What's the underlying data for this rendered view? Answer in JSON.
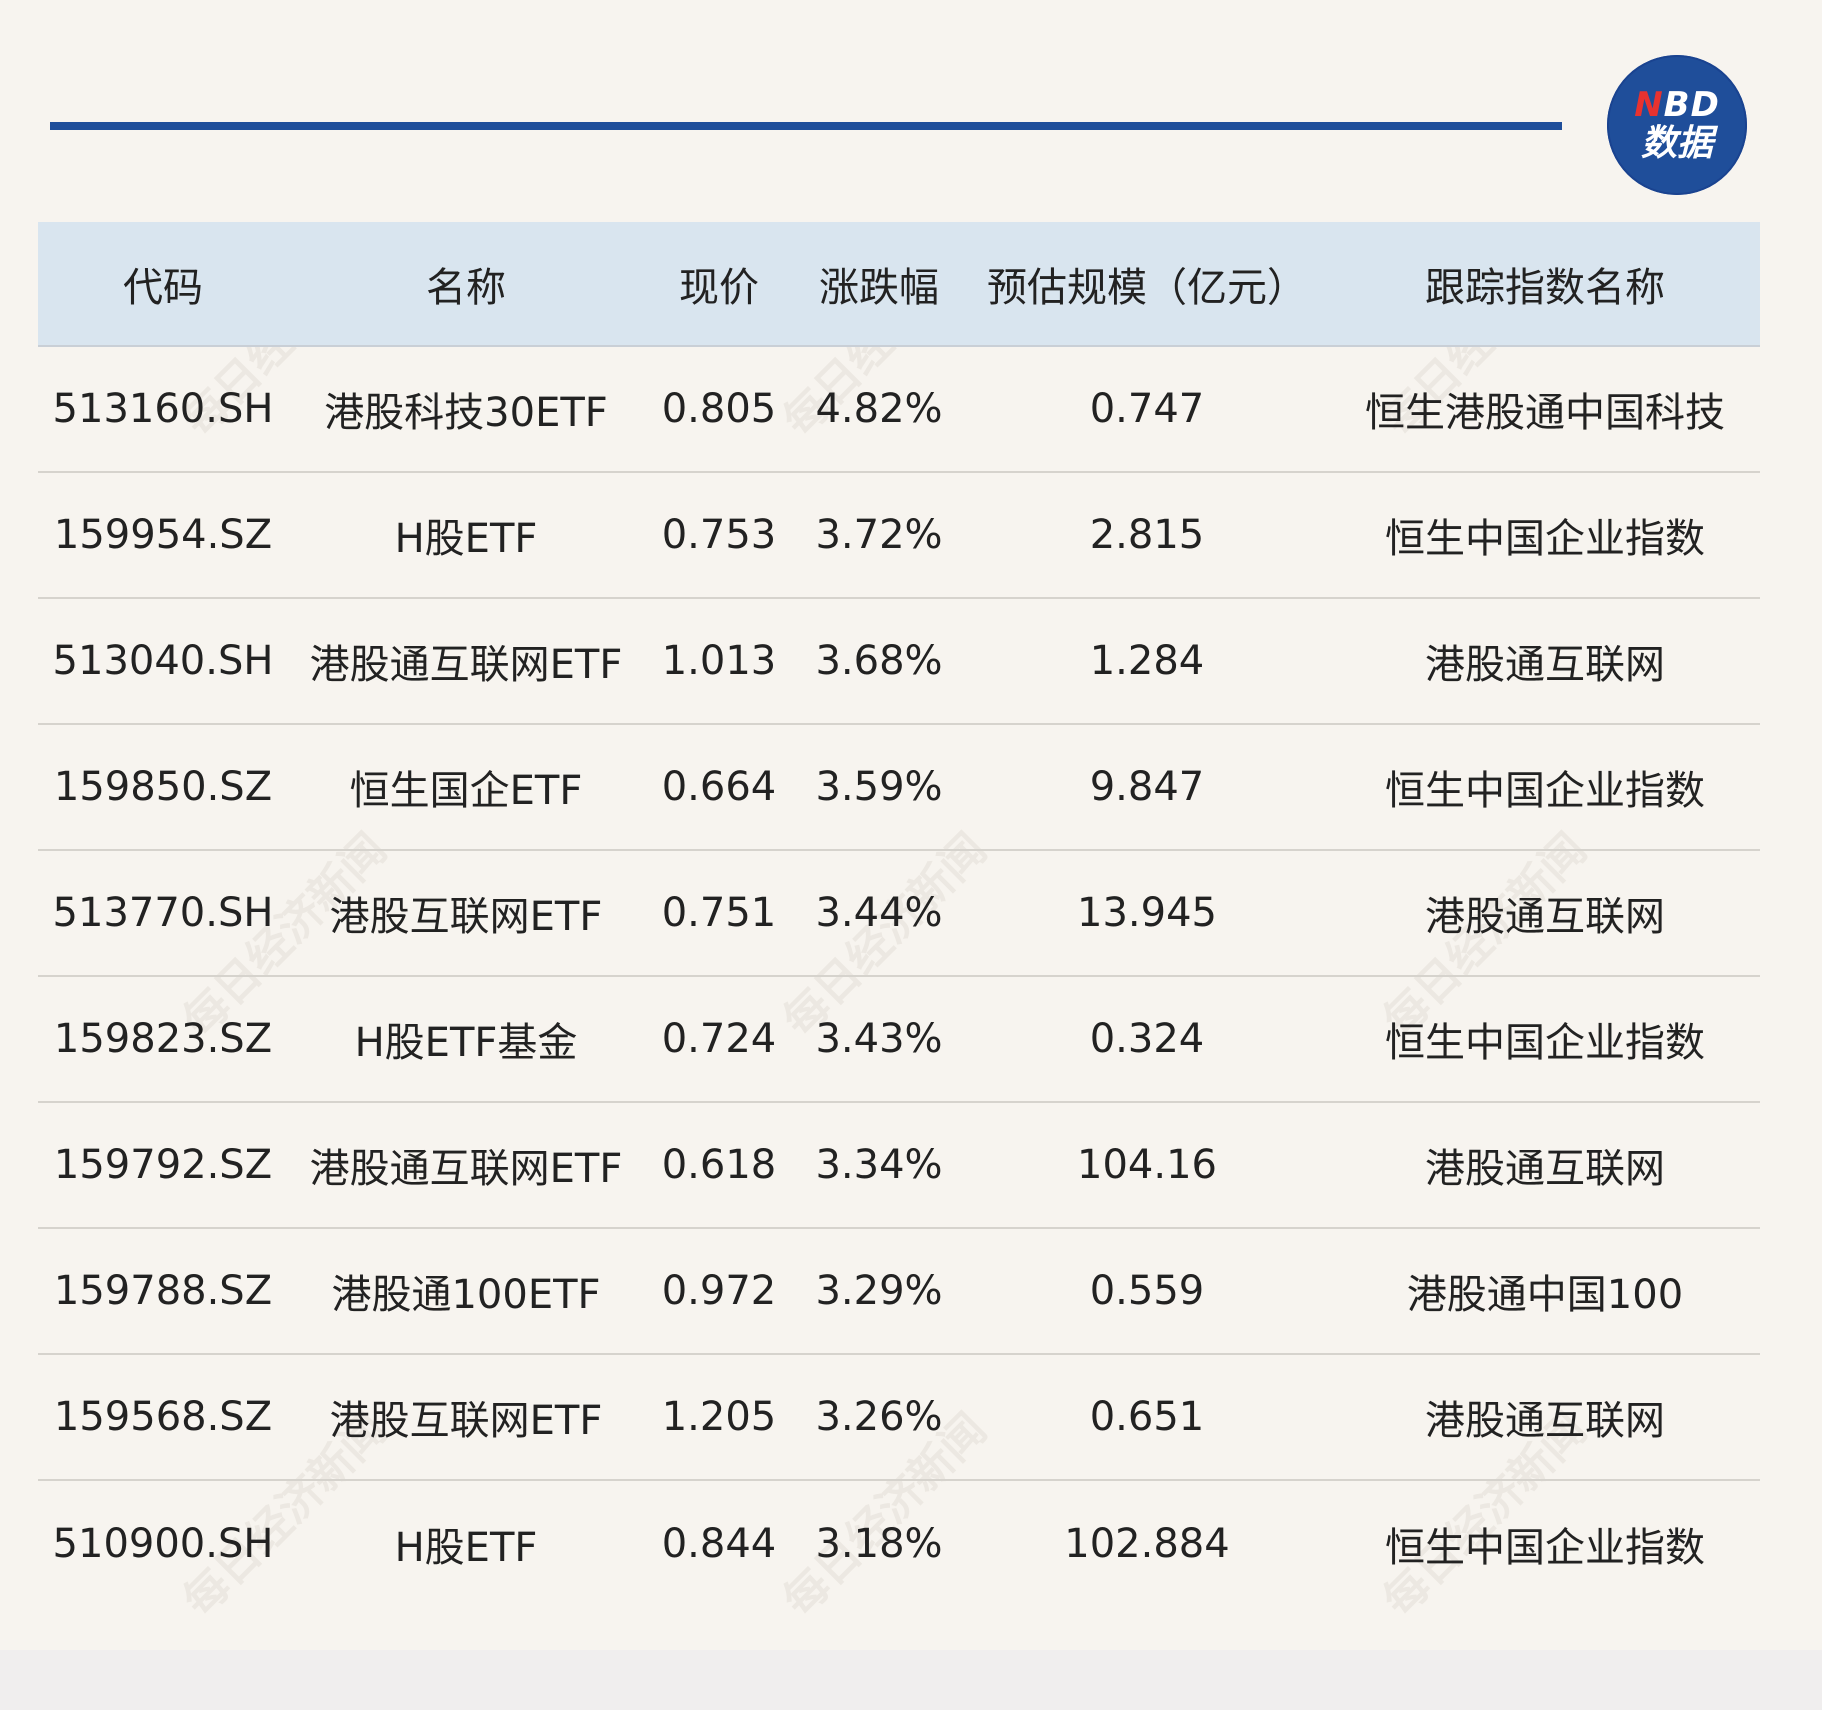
{
  "logo": {
    "top": "NBD",
    "bottom": "数据"
  },
  "watermark": "每日经济新闻",
  "table": {
    "headers": [
      "代码",
      "名称",
      "现价",
      "涨跌幅",
      "预估规模（亿元）",
      "跟踪指数名称"
    ],
    "rows": [
      [
        "513160.SH",
        "港股科技30ETF",
        "0.805",
        "4.82%",
        "0.747",
        "恒生港股通中国科技"
      ],
      [
        "159954.SZ",
        "H股ETF",
        "0.753",
        "3.72%",
        "2.815",
        "恒生中国企业指数"
      ],
      [
        "513040.SH",
        "港股通互联网ETF",
        "1.013",
        "3.68%",
        "1.284",
        "港股通互联网"
      ],
      [
        "159850.SZ",
        "恒生国企ETF",
        "0.664",
        "3.59%",
        "9.847",
        "恒生中国企业指数"
      ],
      [
        "513770.SH",
        "港股互联网ETF",
        "0.751",
        "3.44%",
        "13.945",
        "港股通互联网"
      ],
      [
        "159823.SZ",
        "H股ETF基金",
        "0.724",
        "3.43%",
        "0.324",
        "恒生中国企业指数"
      ],
      [
        "159792.SZ",
        "港股通互联网ETF",
        "0.618",
        "3.34%",
        "104.16",
        "港股通互联网"
      ],
      [
        "159788.SZ",
        "港股通100ETF",
        "0.972",
        "3.29%",
        "0.559",
        "港股通中国100"
      ],
      [
        "159568.SZ",
        "港股互联网ETF",
        "1.205",
        "3.26%",
        "0.651",
        "港股通互联网"
      ],
      [
        "510900.SH",
        "H股ETF",
        "0.844",
        "3.18%",
        "102.884",
        "恒生中国企业指数"
      ]
    ]
  }
}
